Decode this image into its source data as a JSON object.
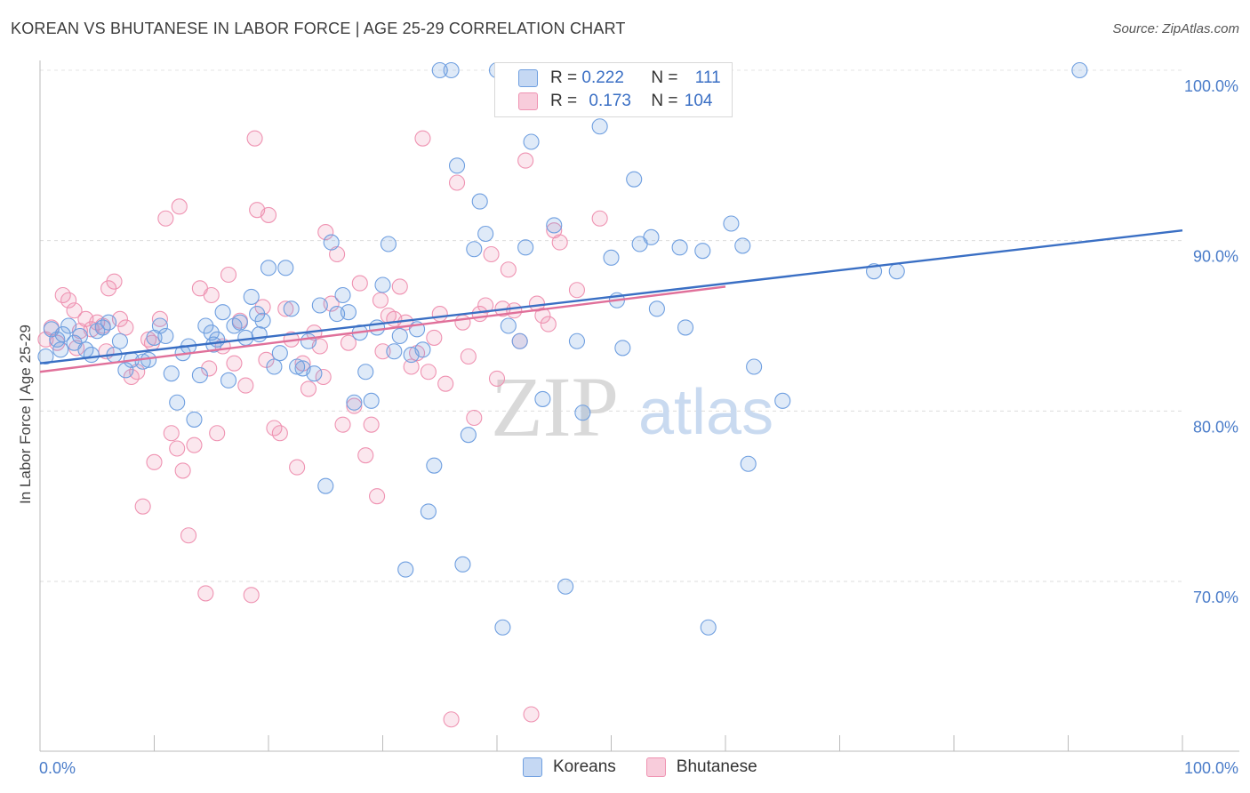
{
  "title": "KOREAN VS BHUTANESE IN LABOR FORCE | AGE 25-29 CORRELATION CHART",
  "source": "Source: ZipAtlas.com",
  "watermark": {
    "zip": "ZIP",
    "atlas": "atlas"
  },
  "legend": {
    "r_label": "R =",
    "n_label": "N =",
    "rows": [
      {
        "r": "0.222",
        "n": "111"
      },
      {
        "r": "0.173",
        "n": "104"
      }
    ]
  },
  "bottom_legend": [
    "Koreans",
    "Bhutanese"
  ],
  "chart_data": {
    "type": "scatter",
    "title": "KOREAN VS BHUTANESE IN LABOR FORCE | AGE 25-29 CORRELATION CHART",
    "ylabel": "In Labor Force | Age 25-29",
    "xlim": [
      0,
      100
    ],
    "ylim": [
      60.5,
      101.5
    ],
    "x_tick_labels": [
      "0.0%",
      "100.0%"
    ],
    "y_ticks": [
      100,
      90,
      80,
      70
    ],
    "y_tick_labels": [
      "100.0%",
      "90.0%",
      "80.0%",
      "70.0%"
    ],
    "grid": true,
    "colors": {
      "koreans": "#6f9fe0",
      "bhutanese": "#ef93b2",
      "koreans_line": "#3a6fc4",
      "bhutanese_line": "#e0709a"
    },
    "series": [
      {
        "name": "Koreans",
        "trend": {
          "x": [
            0,
            100
          ],
          "y": [
            82.8,
            90.6
          ]
        },
        "points": [
          [
            1.0,
            84.8
          ],
          [
            1.5,
            84.2
          ],
          [
            2.0,
            84.5
          ],
          [
            2.5,
            85.0
          ],
          [
            3.0,
            84.0
          ],
          [
            3.5,
            84.4
          ],
          [
            4.0,
            83.6
          ],
          [
            4.5,
            83.3
          ],
          [
            5.0,
            84.7
          ],
          [
            5.5,
            84.9
          ],
          [
            6.0,
            85.2
          ],
          [
            7.0,
            84.1
          ],
          [
            7.5,
            82.4
          ],
          [
            8.0,
            83.0
          ],
          [
            9.0,
            82.9
          ],
          [
            10.0,
            84.3
          ],
          [
            10.5,
            85.0
          ],
          [
            11.0,
            84.4
          ],
          [
            11.5,
            82.2
          ],
          [
            12.0,
            80.5
          ],
          [
            12.5,
            83.4
          ],
          [
            13.0,
            83.8
          ],
          [
            13.5,
            79.5
          ],
          [
            14.0,
            82.1
          ],
          [
            14.5,
            85.0
          ],
          [
            15.0,
            84.6
          ],
          [
            15.5,
            84.2
          ],
          [
            16.0,
            85.8
          ],
          [
            16.5,
            81.8
          ],
          [
            17.0,
            85.0
          ],
          [
            17.5,
            85.2
          ],
          [
            18.0,
            84.3
          ],
          [
            18.5,
            86.7
          ],
          [
            19.0,
            85.7
          ],
          [
            19.5,
            85.3
          ],
          [
            20.0,
            88.4
          ],
          [
            20.5,
            82.6
          ],
          [
            21.0,
            83.4
          ],
          [
            21.5,
            88.4
          ],
          [
            22.0,
            86.0
          ],
          [
            22.5,
            82.6
          ],
          [
            23.0,
            82.5
          ],
          [
            23.5,
            84.1
          ],
          [
            24.0,
            82.2
          ],
          [
            24.5,
            86.2
          ],
          [
            25.0,
            75.6
          ],
          [
            25.5,
            89.9
          ],
          [
            26.0,
            85.7
          ],
          [
            26.5,
            86.8
          ],
          [
            27.0,
            85.8
          ],
          [
            27.5,
            80.5
          ],
          [
            28.0,
            84.6
          ],
          [
            28.5,
            82.3
          ],
          [
            29.0,
            80.6
          ],
          [
            29.5,
            84.9
          ],
          [
            30.0,
            87.4
          ],
          [
            30.5,
            89.8
          ],
          [
            31.0,
            83.5
          ],
          [
            31.5,
            84.4
          ],
          [
            32.0,
            70.7
          ],
          [
            32.5,
            83.3
          ],
          [
            33.0,
            84.8
          ],
          [
            33.5,
            83.6
          ],
          [
            34.0,
            74.1
          ],
          [
            34.5,
            76.8
          ],
          [
            35.0,
            100.0
          ],
          [
            36.0,
            100.0
          ],
          [
            36.5,
            94.4
          ],
          [
            37.0,
            71.0
          ],
          [
            37.5,
            78.6
          ],
          [
            38.0,
            89.5
          ],
          [
            38.5,
            92.3
          ],
          [
            39.0,
            90.4
          ],
          [
            40.0,
            100.0
          ],
          [
            40.5,
            67.3
          ],
          [
            41.0,
            85.0
          ],
          [
            42.0,
            84.1
          ],
          [
            42.5,
            89.6
          ],
          [
            43.0,
            95.8
          ],
          [
            44.0,
            80.7
          ],
          [
            45.0,
            90.9
          ],
          [
            46.0,
            69.7
          ],
          [
            47.0,
            84.1
          ],
          [
            47.5,
            79.9
          ],
          [
            48.0,
            100.0
          ],
          [
            49.0,
            96.7
          ],
          [
            50.0,
            89.0
          ],
          [
            50.5,
            86.5
          ],
          [
            51.0,
            83.7
          ],
          [
            52.0,
            93.6
          ],
          [
            52.5,
            89.8
          ],
          [
            53.5,
            90.2
          ],
          [
            54.0,
            86.0
          ],
          [
            56.0,
            89.6
          ],
          [
            56.5,
            84.9
          ],
          [
            58.0,
            89.4
          ],
          [
            58.5,
            67.3
          ],
          [
            60.5,
            91.0
          ],
          [
            61.5,
            89.7
          ],
          [
            62.0,
            76.9
          ],
          [
            62.5,
            82.6
          ],
          [
            65.0,
            80.6
          ],
          [
            73.0,
            88.2
          ],
          [
            75.0,
            88.2
          ],
          [
            91.0,
            100.0
          ],
          [
            0.5,
            83.2
          ],
          [
            1.8,
            83.6
          ],
          [
            6.5,
            83.3
          ],
          [
            9.5,
            83.0
          ],
          [
            15.2,
            83.9
          ],
          [
            19.2,
            84.5
          ]
        ]
      },
      {
        "name": "Bhutanese",
        "trend": {
          "x": [
            0,
            60
          ],
          "y": [
            82.3,
            87.3
          ]
        },
        "points": [
          [
            0.5,
            84.2
          ],
          [
            1.0,
            84.9
          ],
          [
            1.5,
            84.0
          ],
          [
            2.0,
            86.8
          ],
          [
            2.5,
            86.5
          ],
          [
            3.0,
            85.9
          ],
          [
            3.5,
            84.7
          ],
          [
            4.0,
            85.4
          ],
          [
            4.5,
            84.8
          ],
          [
            5.0,
            85.2
          ],
          [
            5.5,
            85.0
          ],
          [
            6.0,
            87.2
          ],
          [
            6.5,
            87.6
          ],
          [
            7.0,
            85.4
          ],
          [
            7.5,
            84.9
          ],
          [
            8.0,
            82.0
          ],
          [
            8.5,
            82.3
          ],
          [
            9.0,
            74.4
          ],
          [
            9.5,
            84.2
          ],
          [
            10.0,
            77.0
          ],
          [
            10.5,
            85.4
          ],
          [
            11.0,
            91.3
          ],
          [
            11.5,
            78.7
          ],
          [
            12.0,
            77.8
          ],
          [
            12.5,
            76.5
          ],
          [
            13.0,
            72.7
          ],
          [
            13.5,
            78.0
          ],
          [
            14.0,
            87.2
          ],
          [
            14.5,
            69.3
          ],
          [
            15.0,
            86.8
          ],
          [
            15.5,
            78.7
          ],
          [
            16.0,
            83.8
          ],
          [
            16.5,
            88.0
          ],
          [
            17.0,
            82.8
          ],
          [
            17.5,
            85.3
          ],
          [
            18.0,
            81.5
          ],
          [
            18.5,
            69.2
          ],
          [
            19.0,
            91.8
          ],
          [
            19.5,
            86.1
          ],
          [
            20.0,
            91.5
          ],
          [
            20.5,
            79.0
          ],
          [
            21.0,
            78.7
          ],
          [
            21.5,
            86.0
          ],
          [
            22.0,
            84.2
          ],
          [
            22.5,
            76.7
          ],
          [
            23.0,
            82.8
          ],
          [
            23.5,
            81.3
          ],
          [
            24.0,
            84.6
          ],
          [
            24.5,
            83.8
          ],
          [
            25.0,
            90.5
          ],
          [
            25.5,
            86.3
          ],
          [
            26.0,
            89.2
          ],
          [
            26.5,
            79.2
          ],
          [
            27.0,
            84.0
          ],
          [
            27.5,
            80.3
          ],
          [
            28.0,
            87.5
          ],
          [
            28.5,
            77.4
          ],
          [
            29.0,
            79.2
          ],
          [
            29.5,
            75.0
          ],
          [
            30.0,
            83.5
          ],
          [
            30.5,
            85.6
          ],
          [
            31.0,
            85.4
          ],
          [
            31.5,
            87.3
          ],
          [
            32.0,
            85.2
          ],
          [
            32.5,
            82.6
          ],
          [
            33.0,
            83.4
          ],
          [
            33.5,
            96.0
          ],
          [
            34.0,
            82.3
          ],
          [
            34.5,
            84.3
          ],
          [
            35.0,
            85.7
          ],
          [
            35.5,
            81.6
          ],
          [
            36.0,
            61.9
          ],
          [
            36.5,
            93.4
          ],
          [
            37.0,
            85.2
          ],
          [
            37.5,
            83.2
          ],
          [
            38.0,
            79.6
          ],
          [
            38.5,
            85.7
          ],
          [
            39.0,
            86.2
          ],
          [
            39.5,
            89.2
          ],
          [
            40.0,
            81.9
          ],
          [
            40.5,
            86.0
          ],
          [
            41.0,
            88.3
          ],
          [
            41.5,
            85.9
          ],
          [
            42.0,
            84.1
          ],
          [
            42.5,
            94.7
          ],
          [
            43.0,
            62.2
          ],
          [
            43.5,
            86.3
          ],
          [
            44.0,
            85.6
          ],
          [
            44.5,
            85.1
          ],
          [
            45.0,
            90.6
          ],
          [
            45.5,
            89.9
          ],
          [
            47.0,
            87.1
          ],
          [
            49.0,
            91.3
          ],
          [
            59.5,
            100.0
          ],
          [
            57.0,
            100.0
          ],
          [
            18.8,
            96.0
          ],
          [
            12.2,
            92.0
          ],
          [
            3.2,
            83.7
          ],
          [
            5.8,
            83.5
          ],
          [
            9.8,
            84.0
          ],
          [
            14.8,
            82.5
          ],
          [
            19.8,
            83.0
          ],
          [
            24.8,
            82.0
          ],
          [
            29.8,
            86.5
          ]
        ]
      }
    ]
  }
}
